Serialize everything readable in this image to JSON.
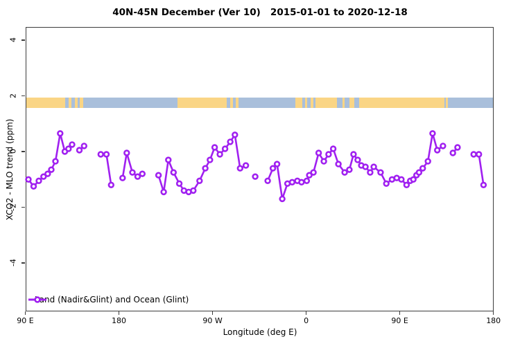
{
  "title": "40N-45N December (Ver 10)   2015-01-01 to 2020-12-18",
  "legend": {
    "label": "Land (Nadir&Glint) and Ocean (Glint)"
  },
  "colors": {
    "series": "#A020F0",
    "marker_fill": "#FFFFFF",
    "land_band": "#FAD585",
    "ocean_band": "#A9BFDB",
    "axis": "#3C3C3C",
    "text": "#000000"
  },
  "chart_data": {
    "type": "line",
    "title": "40N-45N December (Ver 10)   2015-01-01 to 2020-12-18",
    "xlabel": "Longitude (deg E)",
    "ylabel": "XCO2 - MLO trend (ppm)",
    "xlim": [
      90,
      540
    ],
    "ylim": [
      -5.1,
      5.1
    ],
    "grid": false,
    "legend_position": "bottom-left",
    "x_ticks": [
      {
        "value": 90,
        "label": "90 E"
      },
      {
        "value": 180,
        "label": "180"
      },
      {
        "value": 270,
        "label": "90 W"
      },
      {
        "value": 360,
        "label": "0"
      },
      {
        "value": 450,
        "label": "90 E"
      },
      {
        "value": 540,
        "label": "180"
      }
    ],
    "y_ticks": [
      {
        "value": 4,
        "label": "4"
      },
      {
        "value": 2,
        "label": "2"
      },
      {
        "value": 0,
        "label": "0"
      },
      {
        "value": -2,
        "label": "-2"
      },
      {
        "value": -4,
        "label": "-4"
      }
    ],
    "surface_band": {
      "description": "land/ocean strip drawn near y=1.7 ppm",
      "y_top_value": 1.92,
      "y_bottom_value": 1.56,
      "segments": [
        {
          "from": 90,
          "to": 128.5,
          "type": "land"
        },
        {
          "from": 128.5,
          "to": 132,
          "type": "ocean"
        },
        {
          "from": 132,
          "to": 134.5,
          "type": "land"
        },
        {
          "from": 134.5,
          "to": 138,
          "type": "ocean"
        },
        {
          "from": 138,
          "to": 140.5,
          "type": "land"
        },
        {
          "from": 140.5,
          "to": 142.5,
          "type": "ocean"
        },
        {
          "from": 142.5,
          "to": 146,
          "type": "land"
        },
        {
          "from": 146,
          "to": 236.5,
          "type": "ocean"
        },
        {
          "from": 236.5,
          "to": 284,
          "type": "land"
        },
        {
          "from": 284,
          "to": 287,
          "type": "ocean"
        },
        {
          "from": 287,
          "to": 290,
          "type": "land"
        },
        {
          "from": 290,
          "to": 292.5,
          "type": "ocean"
        },
        {
          "from": 292.5,
          "to": 295,
          "type": "land"
        },
        {
          "from": 295,
          "to": 350,
          "type": "ocean"
        },
        {
          "from": 350,
          "to": 356.5,
          "type": "land"
        },
        {
          "from": 356.5,
          "to": 359,
          "type": "ocean"
        },
        {
          "from": 359,
          "to": 361.5,
          "type": "land"
        },
        {
          "from": 361.5,
          "to": 364.5,
          "type": "ocean"
        },
        {
          "from": 364.5,
          "to": 367,
          "type": "land"
        },
        {
          "from": 367,
          "to": 369.5,
          "type": "ocean"
        },
        {
          "from": 369.5,
          "to": 390,
          "type": "land"
        },
        {
          "from": 390,
          "to": 395,
          "type": "ocean"
        },
        {
          "from": 395,
          "to": 397,
          "type": "land"
        },
        {
          "from": 397,
          "to": 402,
          "type": "ocean"
        },
        {
          "from": 402,
          "to": 406.5,
          "type": "land"
        },
        {
          "from": 406.5,
          "to": 411.5,
          "type": "ocean"
        },
        {
          "from": 411.5,
          "to": 493,
          "type": "land"
        },
        {
          "from": 493,
          "to": 494.5,
          "type": "ocean"
        },
        {
          "from": 494.5,
          "to": 496.5,
          "type": "land"
        },
        {
          "from": 496.5,
          "to": 540,
          "type": "ocean"
        }
      ]
    },
    "series": [
      {
        "name": "Land (Nadir&Glint) and Ocean (Glint)",
        "color": "#A020F0",
        "marker": "open-circle",
        "segments": [
          [
            [
              93,
              -1.0
            ],
            [
              98,
              -1.25
            ],
            [
              103,
              -1.05
            ],
            [
              107.5,
              -0.9
            ],
            [
              111.5,
              -0.8
            ],
            [
              115,
              -0.65
            ],
            [
              119,
              -0.35
            ],
            [
              123.5,
              0.65
            ],
            [
              128,
              0.0
            ],
            [
              131.5,
              0.1
            ],
            [
              135,
              0.25
            ]
          ],
          [
            [
              142,
              0.05
            ],
            [
              146.5,
              0.2
            ]
          ],
          [
            [
              162.5,
              -0.1
            ],
            [
              168,
              -0.1
            ],
            [
              172.5,
              -1.2
            ]
          ],
          [
            [
              183.5,
              -0.95
            ],
            [
              187.5,
              -0.05
            ],
            [
              193,
              -0.75
            ],
            [
              198,
              -0.9
            ],
            [
              202.5,
              -0.8
            ]
          ],
          [
            [
              218,
              -0.85
            ],
            [
              223,
              -1.45
            ],
            [
              227.5,
              -0.3
            ],
            [
              232.5,
              -0.75
            ],
            [
              238,
              -1.15
            ],
            [
              242.5,
              -1.4
            ],
            [
              247,
              -1.45
            ],
            [
              251.5,
              -1.4
            ],
            [
              257.5,
              -1.05
            ],
            [
              263,
              -0.6
            ],
            [
              267.5,
              -0.3
            ],
            [
              272,
              0.15
            ],
            [
              277,
              -0.1
            ],
            [
              282,
              0.1
            ],
            [
              287,
              0.35
            ],
            [
              291.5,
              0.6
            ],
            [
              296.5,
              -0.6
            ],
            [
              302,
              -0.5
            ]
          ],
          [
            [
              311,
              -0.9
            ]
          ],
          [
            [
              323,
              -1.05
            ],
            [
              328,
              -0.6
            ],
            [
              332,
              -0.45
            ],
            [
              337,
              -1.7
            ],
            [
              342,
              -1.15
            ],
            [
              346.5,
              -1.1
            ],
            [
              351.5,
              -1.05
            ],
            [
              355.5,
              -1.1
            ],
            [
              360.5,
              -1.05
            ],
            [
              363,
              -0.85
            ],
            [
              367,
              -0.75
            ],
            [
              372,
              -0.05
            ],
            [
              377,
              -0.35
            ],
            [
              381.5,
              -0.1
            ],
            [
              386,
              0.1
            ],
            [
              391,
              -0.45
            ],
            [
              397,
              -0.75
            ],
            [
              401.5,
              -0.65
            ],
            [
              405.5,
              -0.1
            ],
            [
              409.5,
              -0.3
            ],
            [
              413,
              -0.5
            ],
            [
              417,
              -0.55
            ],
            [
              421.5,
              -0.75
            ],
            [
              425,
              -0.55
            ],
            [
              431.5,
              -0.75
            ],
            [
              437,
              -1.15
            ],
            [
              442.5,
              -1.0
            ],
            [
              447,
              -0.95
            ],
            [
              451.5,
              -1.0
            ],
            [
              456.5,
              -1.2
            ],
            [
              460,
              -1.05
            ],
            [
              463,
              -1.0
            ],
            [
              466,
              -0.85
            ],
            [
              468.5,
              -0.75
            ],
            [
              472,
              -0.6
            ],
            [
              477,
              -0.35
            ],
            [
              481.5,
              0.65
            ],
            [
              486,
              0.05
            ],
            [
              491.5,
              0.2
            ]
          ],
          [
            [
              501,
              -0.05
            ],
            [
              505.5,
              0.15
            ]
          ],
          [
            [
              521,
              -0.1
            ],
            [
              526,
              -0.1
            ],
            [
              530.5,
              -1.2
            ]
          ]
        ]
      }
    ]
  }
}
